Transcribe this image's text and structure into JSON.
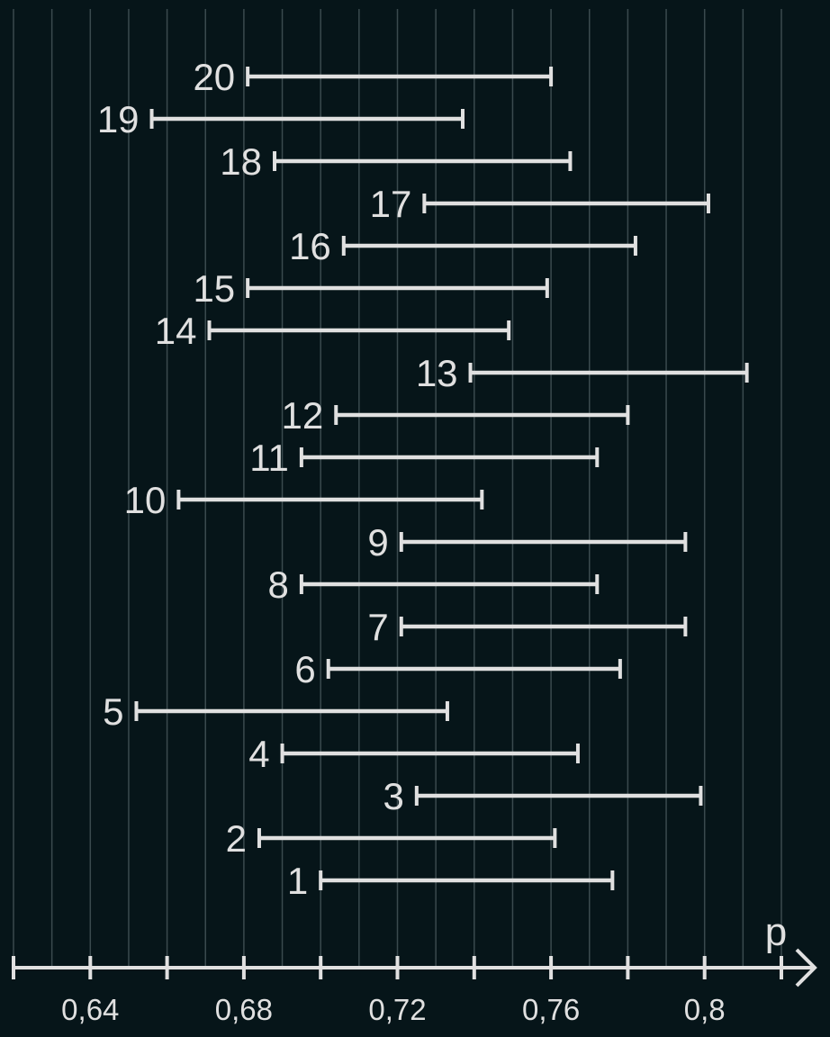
{
  "chart_data": {
    "type": "interval",
    "axis_label": "p",
    "xlim": [
      0.62,
      0.82
    ],
    "minor_tick_step": 0.02,
    "grid_step": 0.01,
    "grid": true,
    "tick_values": [
      0.64,
      0.68,
      0.72,
      0.76,
      0.8
    ],
    "tick_labels": [
      "0,64",
      "0,68",
      "0,72",
      "0,76",
      "0,8"
    ],
    "intervals": [
      {
        "label": "1",
        "low": 0.7,
        "high": 0.776
      },
      {
        "label": "2",
        "low": 0.684,
        "high": 0.761
      },
      {
        "label": "3",
        "low": 0.725,
        "high": 0.799
      },
      {
        "label": "4",
        "low": 0.69,
        "high": 0.767
      },
      {
        "label": "5",
        "low": 0.652,
        "high": 0.733
      },
      {
        "label": "6",
        "low": 0.702,
        "high": 0.778
      },
      {
        "label": "7",
        "low": 0.721,
        "high": 0.795
      },
      {
        "label": "8",
        "low": 0.695,
        "high": 0.772
      },
      {
        "label": "9",
        "low": 0.721,
        "high": 0.795
      },
      {
        "label": "10",
        "low": 0.663,
        "high": 0.742
      },
      {
        "label": "11",
        "low": 0.695,
        "high": 0.772
      },
      {
        "label": "12",
        "low": 0.704,
        "high": 0.78
      },
      {
        "label": "13",
        "low": 0.739,
        "high": 0.811
      },
      {
        "label": "14",
        "low": 0.671,
        "high": 0.749
      },
      {
        "label": "15",
        "low": 0.681,
        "high": 0.759
      },
      {
        "label": "16",
        "low": 0.706,
        "high": 0.782
      },
      {
        "label": "17",
        "low": 0.727,
        "high": 0.801
      },
      {
        "label": "18",
        "low": 0.688,
        "high": 0.765
      },
      {
        "label": "19",
        "low": 0.656,
        "high": 0.737
      },
      {
        "label": "20",
        "low": 0.681,
        "high": 0.76
      }
    ]
  }
}
